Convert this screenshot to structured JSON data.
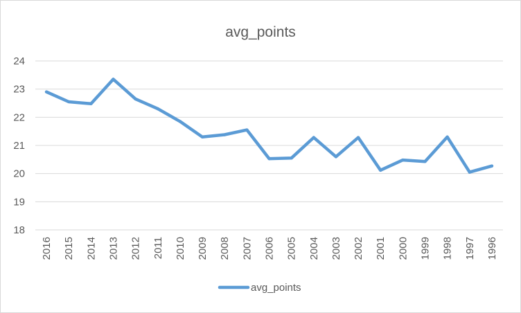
{
  "chart_data": {
    "type": "line",
    "title": "avg_points",
    "xlabel": "",
    "ylabel": "",
    "categories": [
      "2016",
      "2015",
      "2014",
      "2013",
      "2012",
      "2011",
      "2010",
      "2009",
      "2008",
      "2007",
      "2006",
      "2005",
      "2004",
      "2003",
      "2002",
      "2001",
      "2000",
      "1999",
      "1998",
      "1997",
      "1996"
    ],
    "series": [
      {
        "name": "avg_points",
        "values": [
          22.9,
          22.55,
          22.48,
          23.35,
          22.65,
          22.3,
          21.85,
          21.3,
          21.38,
          21.55,
          20.53,
          20.55,
          21.28,
          20.6,
          21.28,
          20.12,
          20.48,
          20.43,
          21.3,
          20.05,
          20.27
        ],
        "color": "#5b9bd5"
      }
    ],
    "ylim": [
      18,
      24
    ],
    "yticks": [
      18,
      19,
      20,
      21,
      22,
      23,
      24
    ],
    "grid": true,
    "legend_position": "bottom"
  }
}
